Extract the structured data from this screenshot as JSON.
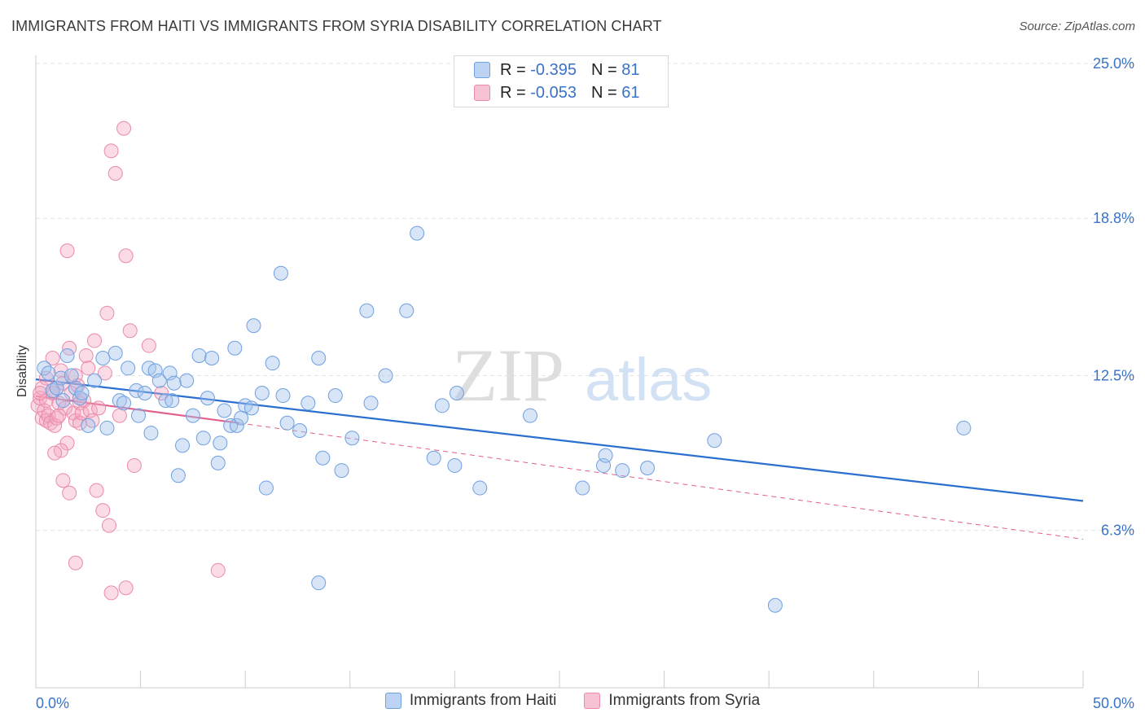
{
  "title": "IMMIGRANTS FROM HAITI VS IMMIGRANTS FROM SYRIA DISABILITY CORRELATION CHART",
  "source": "Source: ZipAtlas.com",
  "watermark": {
    "zip": "ZIP",
    "atlas": "atlas"
  },
  "legend": {
    "r_label": "R =",
    "n_label": "N =",
    "rows": [
      {
        "series": "Immigrants from Haiti",
        "r": "-0.395",
        "n": "81",
        "color": "#6fa0e0",
        "fill": "#bcd3f3"
      },
      {
        "series": "Immigrants from Syria",
        "r": "-0.053",
        "n": "61",
        "color": "#ea8aaa",
        "fill": "#f7c2d3"
      }
    ]
  },
  "bottom_legend": [
    "Immigrants from Haiti",
    "Immigrants from Syria"
  ],
  "chart_data": {
    "type": "scatter",
    "title": "IMMIGRANTS FROM HAITI VS IMMIGRANTS FROM SYRIA DISABILITY CORRELATION CHART",
    "xlabel": "",
    "ylabel": "Disability",
    "xlim": [
      0,
      50
    ],
    "ylim": [
      0,
      25
    ],
    "x_tick_labels": [
      "0.0%",
      "50.0%"
    ],
    "y_ticks": [
      6.3,
      12.5,
      18.8,
      25.0
    ],
    "y_tick_labels": [
      "6.3%",
      "12.5%",
      "18.8%",
      "25.0%"
    ],
    "grid": true,
    "series": [
      {
        "name": "Immigrants from Haiti",
        "color": "#6fa0e0",
        "points": [
          [
            0.4,
            12.8
          ],
          [
            0.6,
            12.6
          ],
          [
            0.8,
            11.9
          ],
          [
            1.0,
            12.0
          ],
          [
            1.2,
            12.4
          ],
          [
            1.3,
            11.5
          ],
          [
            1.5,
            13.3
          ],
          [
            1.7,
            12.5
          ],
          [
            1.9,
            12.0
          ],
          [
            2.1,
            11.6
          ],
          [
            2.2,
            11.8
          ],
          [
            2.5,
            10.5
          ],
          [
            2.8,
            12.3
          ],
          [
            3.2,
            13.2
          ],
          [
            3.4,
            10.4
          ],
          [
            3.8,
            13.4
          ],
          [
            4.0,
            11.5
          ],
          [
            4.2,
            11.4
          ],
          [
            4.4,
            12.8
          ],
          [
            4.8,
            11.9
          ],
          [
            4.9,
            10.9
          ],
          [
            5.2,
            11.8
          ],
          [
            5.4,
            12.8
          ],
          [
            5.5,
            10.2
          ],
          [
            5.7,
            12.7
          ],
          [
            5.9,
            12.3
          ],
          [
            6.2,
            11.5
          ],
          [
            6.4,
            12.6
          ],
          [
            6.5,
            11.5
          ],
          [
            6.8,
            8.5
          ],
          [
            7.0,
            9.7
          ],
          [
            7.2,
            12.3
          ],
          [
            7.5,
            10.9
          ],
          [
            7.8,
            13.3
          ],
          [
            8.0,
            10.0
          ],
          [
            8.2,
            11.6
          ],
          [
            8.4,
            13.2
          ],
          [
            8.7,
            9.0
          ],
          [
            8.8,
            9.8
          ],
          [
            9.0,
            11.1
          ],
          [
            9.3,
            10.5
          ],
          [
            9.5,
            13.6
          ],
          [
            9.6,
            10.5
          ],
          [
            9.8,
            10.8
          ],
          [
            10.0,
            11.3
          ],
          [
            10.3,
            11.2
          ],
          [
            10.4,
            14.5
          ],
          [
            10.8,
            11.8
          ],
          [
            11.0,
            8.0
          ],
          [
            11.3,
            13.0
          ],
          [
            11.7,
            16.6
          ],
          [
            11.8,
            11.7
          ],
          [
            12.0,
            10.6
          ],
          [
            12.6,
            10.3
          ],
          [
            13.0,
            11.4
          ],
          [
            13.5,
            13.2
          ],
          [
            13.7,
            9.2
          ],
          [
            13.5,
            4.2
          ],
          [
            14.3,
            11.7
          ],
          [
            14.6,
            8.7
          ],
          [
            15.1,
            10.0
          ],
          [
            15.8,
            15.1
          ],
          [
            16.0,
            11.4
          ],
          [
            16.7,
            12.5
          ],
          [
            17.7,
            15.1
          ],
          [
            18.2,
            18.2
          ],
          [
            19.0,
            9.2
          ],
          [
            19.4,
            11.3
          ],
          [
            20.0,
            8.9
          ],
          [
            20.1,
            11.8
          ],
          [
            21.2,
            8.0
          ],
          [
            23.6,
            10.9
          ],
          [
            26.1,
            8.0
          ],
          [
            27.1,
            8.9
          ],
          [
            27.2,
            9.3
          ],
          [
            28.0,
            8.7
          ],
          [
            29.2,
            8.8
          ],
          [
            32.4,
            9.9
          ],
          [
            35.3,
            3.3
          ],
          [
            44.3,
            10.4
          ],
          [
            6.6,
            12.2
          ]
        ]
      },
      {
        "name": "Immigrants from Syria",
        "color": "#ea8aaa",
        "points": [
          [
            0.1,
            11.3
          ],
          [
            0.2,
            11.6
          ],
          [
            0.3,
            12.0
          ],
          [
            0.3,
            10.8
          ],
          [
            0.4,
            11.1
          ],
          [
            0.5,
            10.7
          ],
          [
            0.5,
            11.5
          ],
          [
            0.6,
            10.9
          ],
          [
            0.7,
            10.6
          ],
          [
            0.8,
            11.8
          ],
          [
            0.8,
            13.2
          ],
          [
            0.9,
            10.5
          ],
          [
            1.0,
            10.8
          ],
          [
            1.0,
            12.0
          ],
          [
            1.1,
            11.4
          ],
          [
            1.2,
            12.7
          ],
          [
            1.3,
            12.2
          ],
          [
            1.3,
            8.3
          ],
          [
            1.4,
            11.2
          ],
          [
            1.5,
            17.5
          ],
          [
            1.5,
            9.8
          ],
          [
            1.6,
            13.6
          ],
          [
            1.7,
            11.8
          ],
          [
            1.8,
            11.0
          ],
          [
            1.9,
            12.5
          ],
          [
            1.9,
            10.7
          ],
          [
            2.0,
            12.1
          ],
          [
            2.1,
            11.4
          ],
          [
            2.1,
            10.6
          ],
          [
            2.2,
            11.0
          ],
          [
            2.3,
            11.5
          ],
          [
            2.4,
            13.3
          ],
          [
            2.5,
            12.8
          ],
          [
            2.6,
            11.1
          ],
          [
            2.7,
            10.7
          ],
          [
            2.8,
            13.9
          ],
          [
            2.9,
            7.9
          ],
          [
            3.0,
            11.2
          ],
          [
            3.2,
            7.1
          ],
          [
            3.3,
            12.6
          ],
          [
            3.4,
            15.0
          ],
          [
            3.5,
            6.5
          ],
          [
            3.6,
            21.5
          ],
          [
            3.8,
            20.6
          ],
          [
            4.0,
            10.9
          ],
          [
            4.2,
            22.4
          ],
          [
            4.3,
            17.3
          ],
          [
            4.5,
            14.3
          ],
          [
            4.7,
            8.9
          ],
          [
            1.2,
            9.5
          ],
          [
            1.6,
            7.8
          ],
          [
            3.6,
            3.8
          ],
          [
            4.3,
            4.0
          ],
          [
            0.9,
            9.4
          ],
          [
            1.9,
            5.0
          ],
          [
            5.4,
            13.7
          ],
          [
            6.0,
            11.8
          ],
          [
            8.7,
            4.7
          ],
          [
            0.2,
            11.8
          ],
          [
            0.5,
            12.4
          ],
          [
            1.1,
            10.9
          ]
        ]
      }
    ],
    "trend_lines": [
      {
        "series": "Immigrants from Haiti",
        "x": [
          0,
          50
        ],
        "y": [
          12.35,
          7.48
        ],
        "style": "solid"
      },
      {
        "series": "Immigrants from Syria",
        "x": [
          0,
          9.7
        ],
        "y": [
          11.68,
          10.6
        ],
        "style": "solid"
      },
      {
        "series": "Immigrants from Syria",
        "x": [
          9.7,
          50
        ],
        "y": [
          10.6,
          5.95
        ],
        "style": "dashed"
      }
    ]
  }
}
